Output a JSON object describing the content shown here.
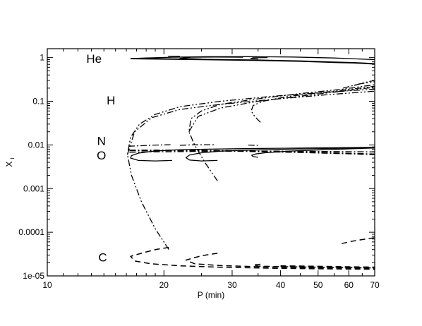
{
  "chart_data": {
    "type": "line",
    "title": "",
    "xlabel": "P (min)",
    "ylabel": "X",
    "ylabel_subscript": "i",
    "xscale": "log",
    "yscale": "log",
    "xlim": [
      10,
      70
    ],
    "ylim": [
      1e-05,
      1.6
    ],
    "grid": false,
    "x_tick_labels": [
      {
        "value": 10,
        "label": "10"
      },
      {
        "value": 20,
        "label": "20"
      },
      {
        "value": 30,
        "label": "30"
      },
      {
        "value": 40,
        "label": "40"
      },
      {
        "value": 50,
        "label": "50"
      },
      {
        "value": 60,
        "label": "60"
      },
      {
        "value": 70,
        "label": "70"
      }
    ],
    "y_tick_labels": [
      {
        "value": 1,
        "label": "1"
      },
      {
        "value": 0.1,
        "label": "0.1"
      },
      {
        "value": 0.01,
        "label": "0.01"
      },
      {
        "value": 0.001,
        "label": "0.001"
      },
      {
        "value": 0.0001,
        "label": "0.0001"
      },
      {
        "value": 1e-05,
        "label": "1e-05"
      }
    ],
    "annotations": [
      {
        "text": "He",
        "x": 13.2,
        "y": 0.95
      },
      {
        "text": "H",
        "x": 14.6,
        "y": 0.105
      },
      {
        "text": "N",
        "x": 13.8,
        "y": 0.0125
      },
      {
        "text": "O",
        "x": 13.8,
        "y": 0.0058
      },
      {
        "text": "C",
        "x": 13.9,
        "y": 2.7e-05
      }
    ],
    "series": [
      {
        "species": "He",
        "dash": "solid",
        "width": 2,
        "points": [
          [
            16.4,
            0.95
          ],
          [
            25,
            0.91
          ],
          [
            35,
            0.87
          ],
          [
            45,
            0.83
          ],
          [
            55,
            0.78
          ],
          [
            62,
            0.76
          ],
          [
            70,
            0.72
          ]
        ]
      },
      {
        "species": "He",
        "dash": "solid",
        "width": 1.3,
        "points": [
          [
            16.4,
            0.95
          ],
          [
            18,
            0.98
          ],
          [
            21,
            1.02
          ],
          [
            26,
            1.05
          ],
          [
            33,
            1.05
          ],
          [
            43,
            1.03
          ],
          [
            55,
            0.98
          ],
          [
            70,
            0.9
          ]
        ]
      },
      {
        "species": "He",
        "dash": "solid",
        "width": 1.3,
        "points": [
          [
            25,
            0.93
          ],
          [
            22,
            0.96
          ],
          [
            23.5,
            1.02
          ],
          [
            27,
            1.03
          ],
          [
            32,
            1.02
          ]
        ]
      },
      {
        "species": "He",
        "dash": "solid",
        "width": 1.3,
        "points": [
          [
            35,
            0.93
          ],
          [
            33.5,
            0.95
          ],
          [
            34,
            0.99
          ],
          [
            37,
            1.0
          ]
        ]
      },
      {
        "species": "He",
        "dash": "solid",
        "width": 1.3,
        "points": [
          [
            20.5,
            1.08
          ],
          [
            22,
            1.08
          ]
        ]
      },
      {
        "species": "H",
        "dash": "dashdotdot",
        "width": 1.3,
        "points": [
          [
            20.6,
            4e-05
          ],
          [
            19,
            0.00012
          ],
          [
            17.5,
            0.0005
          ],
          [
            16.5,
            0.002
          ],
          [
            16.1,
            0.006
          ],
          [
            16.4,
            0.015
          ],
          [
            17.3,
            0.03
          ],
          [
            19,
            0.05
          ],
          [
            22,
            0.075
          ],
          [
            28,
            0.1
          ],
          [
            38,
            0.13
          ],
          [
            52,
            0.16
          ],
          [
            70,
            0.19
          ]
        ]
      },
      {
        "species": "H",
        "dash": "dashdotdot",
        "width": 1.3,
        "points": [
          [
            16.1,
            0.006
          ],
          [
            16.8,
            0.02
          ],
          [
            18.6,
            0.042
          ],
          [
            22,
            0.065
          ],
          [
            28,
            0.085
          ],
          [
            38,
            0.11
          ],
          [
            52,
            0.14
          ],
          [
            70,
            0.17
          ]
        ]
      },
      {
        "species": "H",
        "dash": "dashdotdot",
        "width": 1.3,
        "points": [
          [
            27.5,
            0.0015
          ],
          [
            25.5,
            0.004
          ],
          [
            24,
            0.01
          ],
          [
            23.2,
            0.02
          ],
          [
            23.5,
            0.04
          ],
          [
            25,
            0.06
          ],
          [
            28,
            0.085
          ],
          [
            34,
            0.11
          ],
          [
            45,
            0.15
          ],
          [
            58,
            0.19
          ],
          [
            70,
            0.24
          ]
        ]
      },
      {
        "species": "H",
        "dash": "dashdotdot",
        "width": 1.3,
        "points": [
          [
            23.2,
            0.02
          ],
          [
            24.5,
            0.045
          ],
          [
            28,
            0.07
          ],
          [
            35,
            0.1
          ],
          [
            48,
            0.14
          ],
          [
            70,
            0.21
          ]
        ]
      },
      {
        "species": "H",
        "dash": "dashdotdot",
        "width": 1.3,
        "points": [
          [
            35.5,
            0.033
          ],
          [
            34.3,
            0.045
          ],
          [
            33.6,
            0.06
          ],
          [
            34,
            0.08
          ],
          [
            36,
            0.1
          ],
          [
            42,
            0.13
          ],
          [
            55,
            0.17
          ],
          [
            70,
            0.22
          ]
        ]
      },
      {
        "species": "H",
        "dash": "dashdotdot",
        "width": 1.3,
        "points": [
          [
            58,
            0.2
          ],
          [
            64,
            0.25
          ],
          [
            70,
            0.28
          ]
        ]
      },
      {
        "species": "H",
        "dash": "dashdotdot",
        "width": 1.3,
        "points": [
          [
            62,
            0.23
          ],
          [
            66,
            0.27
          ],
          [
            70,
            0.3
          ]
        ]
      },
      {
        "species": "N",
        "dash": "dashdot",
        "width": 1.3,
        "points": [
          [
            16.2,
            0.0093
          ],
          [
            17.5,
            0.0096
          ],
          [
            19,
            0.0099
          ],
          [
            20.8,
            0.0101
          ]
        ]
      },
      {
        "species": "N",
        "dash": "dashdot",
        "width": 1.3,
        "points": [
          [
            22,
            0.0098
          ],
          [
            24,
            0.0101
          ],
          [
            27,
            0.0101
          ]
        ]
      },
      {
        "species": "N",
        "dash": "dashdot",
        "width": 1.3,
        "points": [
          [
            33,
            0.0099
          ],
          [
            35,
            0.0098
          ]
        ]
      },
      {
        "species": "N",
        "dash": "dashdot",
        "width": 2.2,
        "points": [
          [
            16.3,
            0.0075
          ],
          [
            20,
            0.0075
          ],
          [
            25,
            0.0074
          ],
          [
            30,
            0.0073
          ],
          [
            36,
            0.0071
          ],
          [
            45,
            0.0068
          ],
          [
            55,
            0.0065
          ],
          [
            62,
            0.0063
          ],
          [
            70,
            0.0061
          ]
        ]
      },
      {
        "species": "N",
        "dash": "dashdot",
        "width": 1.3,
        "points": [
          [
            16.3,
            0.0068
          ],
          [
            18,
            0.0069
          ],
          [
            21,
            0.007
          ],
          [
            24,
            0.0071
          ],
          [
            30,
            0.0072
          ],
          [
            40,
            0.0072
          ],
          [
            52,
            0.0071
          ],
          [
            70,
            0.0069
          ]
        ]
      },
      {
        "species": "O",
        "dash": "solid",
        "width": 1.3,
        "points": [
          [
            21,
            0.0044
          ],
          [
            19,
            0.0043
          ],
          [
            17.2,
            0.0044
          ],
          [
            16.4,
            0.005
          ],
          [
            16.5,
            0.0057
          ],
          [
            17.2,
            0.0065
          ],
          [
            18.8,
            0.0072
          ],
          [
            21.5,
            0.0077
          ],
          [
            26,
            0.008
          ],
          [
            32,
            0.0082
          ],
          [
            40,
            0.0084
          ],
          [
            52,
            0.0086
          ],
          [
            70,
            0.0088
          ]
        ]
      },
      {
        "species": "O",
        "dash": "solid",
        "width": 1.3,
        "points": [
          [
            27.5,
            0.0044
          ],
          [
            25,
            0.0043
          ],
          [
            23.3,
            0.0045
          ],
          [
            22.8,
            0.0051
          ],
          [
            23.3,
            0.0059
          ],
          [
            25,
            0.0066
          ],
          [
            28,
            0.0072
          ],
          [
            33,
            0.0076
          ],
          [
            42,
            0.008
          ],
          [
            55,
            0.0083
          ],
          [
            70,
            0.0086
          ]
        ]
      },
      {
        "species": "O",
        "dash": "solid",
        "width": 1.3,
        "points": [
          [
            35,
            0.0052
          ],
          [
            34,
            0.0054
          ],
          [
            33.7,
            0.0058
          ],
          [
            34.5,
            0.0062
          ],
          [
            36.5,
            0.0066
          ],
          [
            42,
            0.0072
          ],
          [
            52,
            0.0078
          ],
          [
            70,
            0.0085
          ]
        ]
      },
      {
        "species": "C",
        "dash": "dashed",
        "width": 1.5,
        "points": [
          [
            20.6,
            4.5e-05
          ],
          [
            19,
            4e-05
          ],
          [
            17.5,
            3.3e-05
          ],
          [
            16.4,
            2.8e-05
          ],
          [
            16.8,
            2.2e-05
          ],
          [
            18.5,
            1.9e-05
          ],
          [
            22,
            1.7e-05
          ],
          [
            28,
            1.58e-05
          ],
          [
            38,
            1.5e-05
          ],
          [
            52,
            1.45e-05
          ],
          [
            70,
            1.42e-05
          ]
        ]
      },
      {
        "species": "C",
        "dash": "dashed",
        "width": 1.5,
        "points": [
          [
            27.5,
            3.3e-05
          ],
          [
            25,
            2.9e-05
          ],
          [
            22.8,
            2.3e-05
          ],
          [
            24,
            1.9e-05
          ],
          [
            28,
            1.72e-05
          ],
          [
            35,
            1.62e-05
          ],
          [
            45,
            1.55e-05
          ],
          [
            58,
            1.5e-05
          ],
          [
            70,
            1.48e-05
          ]
        ]
      },
      {
        "species": "C",
        "dash": "dashed",
        "width": 1.5,
        "points": [
          [
            35.5,
            1.85e-05
          ],
          [
            34,
            1.78e-05
          ],
          [
            35,
            1.68e-05
          ],
          [
            40,
            1.62e-05
          ],
          [
            50,
            1.58e-05
          ],
          [
            70,
            1.52e-05
          ]
        ]
      },
      {
        "species": "C",
        "dash": "dashed",
        "width": 2.2,
        "points": [
          [
            40,
            1.68e-05
          ],
          [
            50,
            1.64e-05
          ],
          [
            60,
            1.6e-05
          ],
          [
            70,
            1.57e-05
          ]
        ]
      },
      {
        "species": "C",
        "dash": "dashed",
        "width": 1.5,
        "points": [
          [
            57.5,
            5.5e-05
          ],
          [
            61,
            6.2e-05
          ],
          [
            65,
            6.8e-05
          ],
          [
            70,
            7.5e-05
          ]
        ]
      }
    ]
  }
}
